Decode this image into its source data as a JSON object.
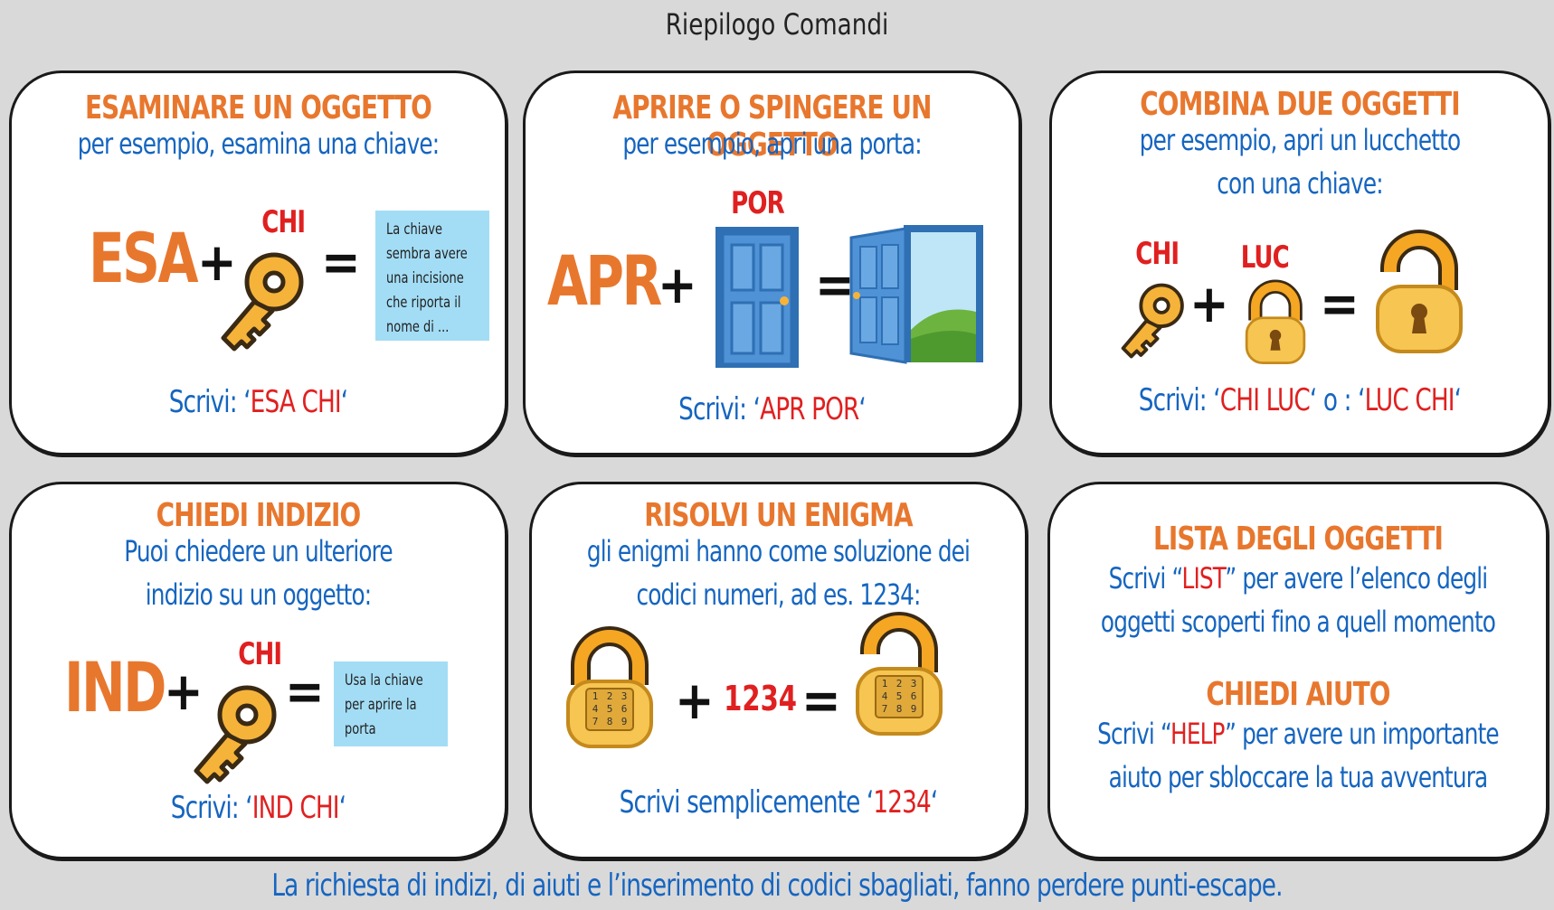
{
  "page_title": "Riepilogo Comandi",
  "cards": {
    "examine": {
      "title": "ESAMINARE UN OGGETTO",
      "desc": "per esempio, esamina una chiave:",
      "command": "ESA",
      "object_label": "CHI",
      "plus": "+",
      "equals": "=",
      "note_lines": [
        "La chiave",
        "sembra avere",
        "una incisione",
        "che riporta il",
        "nome di ..."
      ],
      "write_prefix": "Scrivi: ‘",
      "write_cmd": "ESA CHI",
      "write_suffix": "‘"
    },
    "open": {
      "title": "APRIRE O SPINGERE UN OGGETTO",
      "desc": "per esempio, apri una porta:",
      "command": "APR",
      "object_label": "POR",
      "plus": "+",
      "equals": "=",
      "write_prefix": "Scrivi: ‘",
      "write_cmd": "APR POR",
      "write_suffix": "‘"
    },
    "combine": {
      "title": "COMBINA DUE OGGETTI",
      "desc_lines": [
        "per esempio, apri un lucchetto",
        "con una chiave:"
      ],
      "label_a": "CHI",
      "label_b": "LUC",
      "plus": "+",
      "equals": "=",
      "write_prefix": "Scrivi: ‘",
      "write_cmd_a": "CHI LUC",
      "write_mid": "‘ o : ‘",
      "write_cmd_b": "LUC CHI",
      "write_suffix": "‘"
    },
    "hint": {
      "title": "CHIEDI INDIZIO",
      "desc_lines": [
        "Puoi chiedere un ulteriore",
        "indizio su un oggetto:"
      ],
      "command": "IND",
      "object_label": "CHI",
      "plus": "+",
      "equals": "=",
      "note_lines": [
        "Usa la chiave",
        "per aprire la",
        "porta"
      ],
      "write_prefix": "Scrivi: ‘",
      "write_cmd": "IND CHI",
      "write_suffix": "‘"
    },
    "riddle": {
      "title": "RISOLVI UN ENIGMA",
      "desc_lines": [
        "gli enigmi hanno come soluzione dei",
        "codici numeri, ad es. 1234:"
      ],
      "code": "1234",
      "plus": "+",
      "equals": "=",
      "keypad": [
        "1",
        "2",
        "3",
        "4",
        "5",
        "6",
        "7",
        "8",
        "9"
      ],
      "write_prefix": "Scrivi semplicemente ‘",
      "write_cmd": "1234",
      "write_suffix": "‘"
    },
    "list_help": {
      "title_list": "LISTA DEGLI OGGETTI",
      "list_prefix": "Scrivi “",
      "list_cmd": "LIST",
      "list_suffix": "” per avere l’elenco degli",
      "list_line2": "oggetti scoperti fino a quell momento",
      "title_help": "CHIEDI AIUTO",
      "help_prefix": "Scrivi “",
      "help_cmd": "HELP",
      "help_suffix": "” per avere un importante",
      "help_line2": "aiuto per sbloccare la tua avventura"
    }
  },
  "footer": "La richiesta di indizi, di aiuti e l’inserimento di codici sbagliati, fanno perdere punti-escape.",
  "colors": {
    "background": "#d9d9d9",
    "title_orange": "#e8772e",
    "text_blue": "#1565c0",
    "command_red": "#e02020",
    "note_blue": "#a3ddf5",
    "key_gold": "#f6b33a"
  },
  "icons": [
    "key-icon",
    "door-closed-icon",
    "door-open-icon",
    "padlock-closed-icon",
    "padlock-open-icon",
    "combination-lock-icon"
  ]
}
